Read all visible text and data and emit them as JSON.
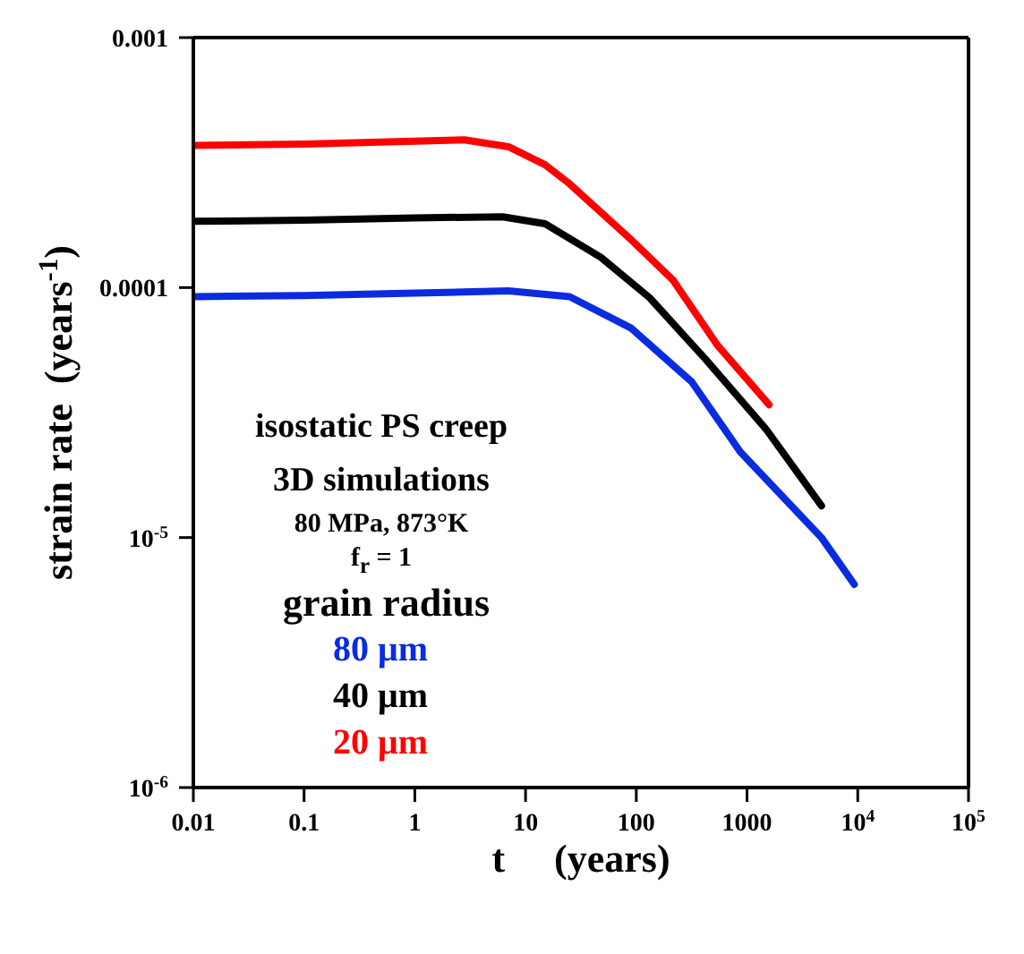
{
  "chart_data": {
    "type": "line",
    "xlabel": "t     (years)",
    "ylabel": "strain rate  (years$^{-1}$)",
    "log": "xy",
    "grid": false,
    "legend": "left",
    "legend_title": "grain radius",
    "marker": "none",
    "line_style": "solid",
    "xlim": [
      0.01,
      100000
    ],
    "xticks": [
      0.01,
      0.1,
      1,
      10,
      100,
      1000,
      {
        "value": 10000,
        "label": "10$^{4}$"
      },
      {
        "value": 100000,
        "label": "10$^{5}$"
      }
    ],
    "ylim": [
      1e-06,
      0.001
    ],
    "yticks": [
      {
        "value": 1e-06,
        "label": "10$^{-6}$"
      },
      {
        "value": 1e-05,
        "label": "10$^{-5}$"
      },
      0.0001,
      0.001
    ],
    "annotations": [
      "isostatic PS creep",
      "3D simulations",
      "80 MPa, 873°K",
      "f$_{r}$ = 1"
    ],
    "series": [
      {
        "name": "80 μm",
        "color": "#0a2be0",
        "x": [
          0.01,
          0.1,
          1,
          7,
          25,
          89,
          316,
          870,
          4700,
          9300
        ],
        "values": [
          9.2e-05,
          9.3e-05,
          9.5e-05,
          9.7e-05,
          9.2e-05,
          6.9e-05,
          4.2e-05,
          2.2e-05,
          1e-05,
          6.5e-06
        ]
      },
      {
        "name": "40 μm",
        "color": "#000000",
        "x": [
          0.01,
          0.1,
          1,
          6.2,
          15,
          48,
          132,
          417,
          1480,
          4700
        ],
        "values": [
          0.000184,
          0.000186,
          0.00019,
          0.000192,
          0.00018,
          0.000132,
          9.1e-05,
          5.2e-05,
          2.72e-05,
          1.34e-05
        ]
      },
      {
        "name": "20 μm",
        "color": "#ff0000",
        "x": [
          0.01,
          0.1,
          1,
          2.8,
          7,
          15,
          25,
          89,
          215,
          537,
          1580
        ],
        "values": [
          0.00037,
          0.000375,
          0.000385,
          0.00039,
          0.000366,
          0.00031,
          0.00026,
          0.000156,
          0.000107,
          5.9e-05,
          3.4e-05
        ]
      }
    ]
  }
}
